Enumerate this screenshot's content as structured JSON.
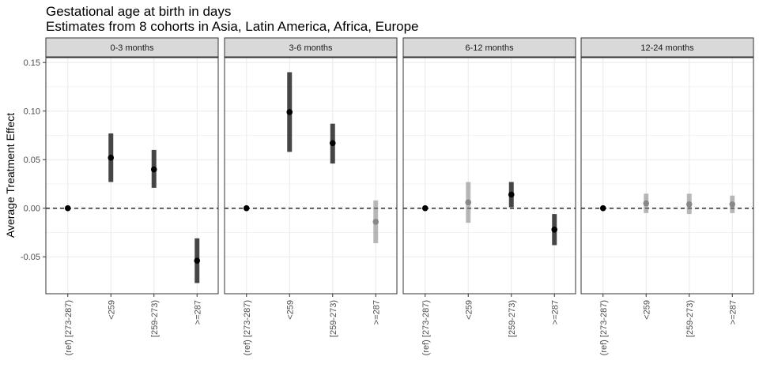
{
  "chart_data": {
    "type": "pointrange",
    "title": "Gestational age at birth in days",
    "subtitle": "Estimates from 8 cohorts in Asia, Latin America, Africa, Europe",
    "xlabel": "",
    "ylabel": "Average Treatment Effect",
    "ylim": [
      -0.088,
      0.155
    ],
    "yticks": [
      -0.05,
      0.0,
      0.05,
      0.1,
      0.15
    ],
    "ytick_labels": [
      "-0.05",
      "0.00",
      "0.05",
      "0.10",
      "0.15"
    ],
    "categories": [
      "(ref) [273-287)",
      "<259",
      "[259-273)",
      ">=287"
    ],
    "reference_line": 0,
    "grid": true,
    "colors": {
      "significant": "#000000",
      "nonsignificant": "#7f7f7f",
      "strip_fill": "#d9d9d9",
      "grid": "#ebebeb"
    },
    "panels": [
      {
        "label": "0-3 months",
        "estimates": [
          0.0,
          0.052,
          0.04,
          -0.054
        ],
        "lower": [
          null,
          0.027,
          0.021,
          -0.077
        ],
        "upper": [
          null,
          0.077,
          0.06,
          -0.031
        ],
        "significant": [
          true,
          true,
          true,
          true
        ]
      },
      {
        "label": "3-6 months",
        "estimates": [
          0.0,
          0.099,
          0.067,
          -0.014
        ],
        "lower": [
          null,
          0.058,
          0.046,
          -0.036
        ],
        "upper": [
          null,
          0.14,
          0.087,
          0.008
        ],
        "significant": [
          true,
          true,
          true,
          false
        ]
      },
      {
        "label": "6-12 months",
        "estimates": [
          0.0,
          0.006,
          0.014,
          -0.022
        ],
        "lower": [
          null,
          -0.015,
          0.001,
          -0.038
        ],
        "upper": [
          null,
          0.027,
          0.027,
          -0.006
        ],
        "significant": [
          true,
          false,
          true,
          true
        ]
      },
      {
        "label": "12-24 months",
        "estimates": [
          0.0,
          0.005,
          0.004,
          0.004
        ],
        "lower": [
          null,
          -0.005,
          -0.006,
          -0.005
        ],
        "upper": [
          null,
          0.015,
          0.015,
          0.013
        ],
        "significant": [
          true,
          false,
          false,
          false
        ]
      }
    ]
  }
}
